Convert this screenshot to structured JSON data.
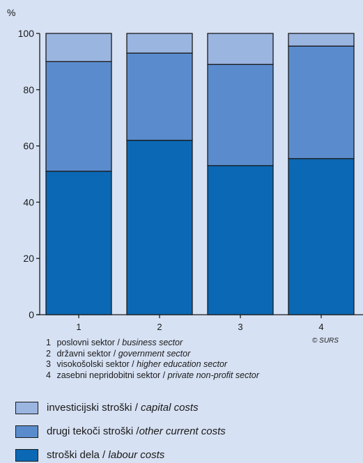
{
  "chart_data": {
    "type": "bar",
    "stacked": true,
    "y_unit_label": "%",
    "ylim": [
      0,
      100
    ],
    "y_ticks": [
      0,
      20,
      40,
      60,
      80,
      100
    ],
    "grid": false,
    "categories": [
      "1",
      "2",
      "3",
      "4"
    ],
    "series": [
      {
        "name_sl": "stroški dela",
        "name_en": "labour costs",
        "color": "#0b68b4",
        "values": [
          51,
          62,
          53,
          55.5
        ]
      },
      {
        "name_sl": "drugi tekoči stroški",
        "name_en": "other current costs",
        "color": "#5a8ccd",
        "values": [
          39,
          31,
          36,
          40
        ]
      },
      {
        "name_sl": "investicijski stroški",
        "name_en": "capital costs",
        "color": "#9bb5e1",
        "values": [
          10,
          7,
          11,
          4.5
        ]
      }
    ],
    "category_notes": [
      {
        "num": "1",
        "sl": "poslovni sektor",
        "en": "business sector"
      },
      {
        "num": "2",
        "sl": "državni sektor",
        "en": "government sector"
      },
      {
        "num": "3",
        "sl": "visokošolski sektor",
        "en": "higher education sector"
      },
      {
        "num": "4",
        "sl": "zasebni nepridobitni sektor",
        "en": "private non-profit sector"
      }
    ],
    "source": "© SURS"
  },
  "legend": [
    {
      "sl": "investicijski stroški",
      "sep": " / ",
      "en": "capital costs",
      "color": "#9bb5e1"
    },
    {
      "sl": "drugi tekoči stroški",
      "sep": " /",
      "en": "other current costs",
      "color": "#5a8ccd"
    },
    {
      "sl": "stroški dela",
      "sep": " / ",
      "en": "labour costs",
      "color": "#0b68b4"
    }
  ]
}
